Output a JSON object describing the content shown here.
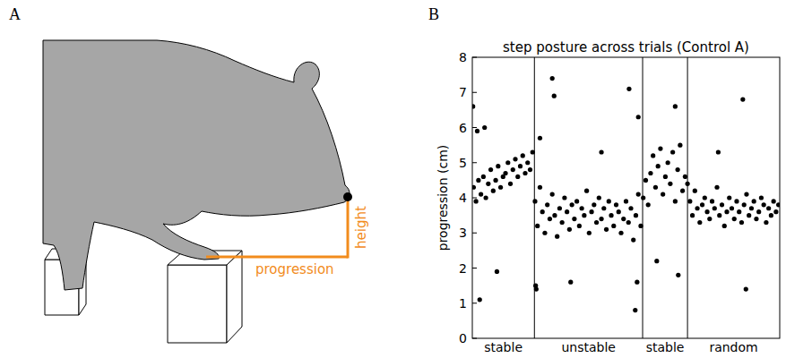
{
  "diagram": {
    "panel_label": "A",
    "progression_label": "progression",
    "height_label": "height"
  },
  "chart_data": {
    "type": "scatter",
    "panel_label": "B",
    "title": "step posture across trials (Control A)",
    "y_label": "progression (cm)",
    "xlim": [
      0,
      500
    ],
    "ylim": [
      0,
      8
    ],
    "yticks": [
      0,
      1,
      2,
      3,
      4,
      5,
      6,
      7,
      8
    ],
    "tick_labels": "y",
    "color": "#000000",
    "marker": "circle",
    "sections": [
      {
        "label": "stable",
        "start": 0,
        "end": 101
      },
      {
        "label": "unstable",
        "start": 101,
        "end": 277
      },
      {
        "label": "stable",
        "start": 277,
        "end": 350
      },
      {
        "label": "random",
        "start": 350,
        "end": 500
      }
    ],
    "x": [
      2,
      6,
      10,
      14,
      18,
      22,
      26,
      30,
      34,
      38,
      42,
      46,
      50,
      54,
      58,
      62,
      66,
      70,
      74,
      78,
      82,
      86,
      90,
      94,
      98,
      102,
      106,
      110,
      114,
      118,
      122,
      126,
      130,
      134,
      138,
      142,
      146,
      150,
      154,
      158,
      162,
      166,
      170,
      174,
      178,
      182,
      186,
      190,
      194,
      198,
      202,
      206,
      210,
      214,
      218,
      222,
      226,
      230,
      234,
      238,
      242,
      246,
      250,
      254,
      258,
      262,
      266,
      270,
      274,
      278,
      282,
      286,
      290,
      294,
      298,
      302,
      306,
      310,
      314,
      318,
      322,
      326,
      330,
      334,
      338,
      342,
      346,
      350,
      354,
      358,
      362,
      366,
      370,
      374,
      378,
      382,
      386,
      390,
      394,
      398,
      402,
      406,
      410,
      414,
      418,
      422,
      426,
      430,
      434,
      438,
      442,
      446,
      450,
      454,
      458,
      462,
      466,
      470,
      474,
      478,
      482,
      486,
      490,
      494,
      498,
      1,
      8,
      12,
      20,
      40,
      103,
      104,
      110,
      130,
      133,
      160,
      210,
      255,
      265,
      268,
      270,
      300,
      330,
      335,
      400,
      440,
      445
    ],
    "values": [
      4.3,
      3.9,
      4.5,
      4.1,
      4.6,
      4.0,
      4.4,
      4.8,
      4.2,
      4.5,
      4.9,
      4.3,
      4.6,
      4.7,
      5.0,
      4.4,
      4.8,
      5.1,
      4.6,
      4.9,
      5.2,
      4.7,
      5.0,
      4.8,
      5.3,
      3.9,
      3.2,
      4.3,
      3.6,
      3.0,
      3.8,
      3.4,
      4.1,
      3.5,
      2.9,
      3.7,
      3.3,
      4.0,
      3.6,
      3.1,
      3.8,
      3.4,
      3.9,
      3.2,
      3.7,
      3.5,
      4.2,
      3.0,
      3.6,
      3.8,
      3.3,
      4.0,
      3.4,
      3.7,
      3.1,
      3.9,
      3.5,
      3.2,
      3.8,
      3.6,
      3.0,
      3.4,
      3.9,
      3.3,
      3.7,
      2.8,
      3.5,
      4.1,
      3.2,
      4.0,
      4.5,
      3.8,
      4.7,
      5.2,
      4.3,
      4.9,
      5.4,
      4.1,
      4.6,
      5.0,
      4.4,
      5.3,
      3.9,
      4.8,
      5.5,
      4.2,
      4.6,
      4.4,
      3.9,
      3.5,
      4.2,
      3.7,
      3.3,
      3.8,
      4.0,
      3.6,
      3.4,
      3.9,
      3.7,
      4.3,
      3.5,
      3.8,
      3.2,
      3.6,
      4.0,
      3.7,
      3.4,
      3.9,
      3.6,
      3.3,
      3.8,
      4.1,
      3.5,
      3.7,
      3.9,
      3.4,
      3.6,
      4.0,
      3.8,
      3.3,
      3.7,
      3.5,
      3.9,
      3.6,
      3.8,
      6.6,
      5.9,
      1.1,
      6.0,
      1.9,
      1.5,
      1.4,
      5.7,
      7.4,
      6.9,
      1.6,
      5.3,
      7.1,
      0.8,
      1.6,
      6.3,
      2.2,
      6.6,
      1.8,
      5.3,
      6.8,
      1.4
    ]
  }
}
